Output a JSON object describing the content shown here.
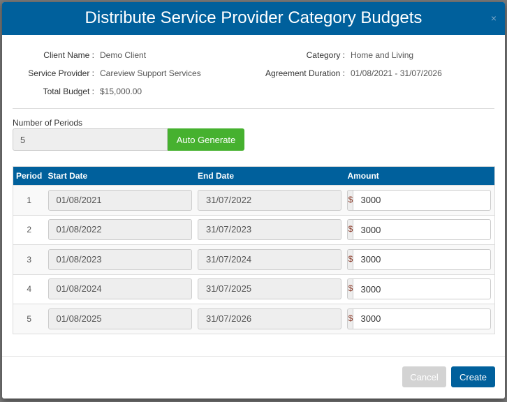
{
  "title": "Distribute Service Provider Category Budgets",
  "close": "×",
  "info": {
    "client_name_label": "Client Name :",
    "client_name": "Demo Client",
    "provider_label": "Service Provider :",
    "provider": "Careview Support Services",
    "budget_label": "Total Budget :",
    "budget": "$15,000.00",
    "category_label": "Category :",
    "category": "Home and Living",
    "duration_label": "Agreement Duration :",
    "duration": "01/08/2021 - 31/07/2026"
  },
  "periods": {
    "label": "Number of Periods",
    "value": "5",
    "button": "Auto Generate"
  },
  "table": {
    "headers": [
      "Period",
      "Start Date",
      "End Date",
      "Amount"
    ],
    "currency": "$",
    "rows": [
      {
        "period": "1",
        "start": "01/08/2021",
        "end": "31/07/2022",
        "amount": "3000"
      },
      {
        "period": "2",
        "start": "01/08/2022",
        "end": "31/07/2023",
        "amount": "3000"
      },
      {
        "period": "3",
        "start": "01/08/2023",
        "end": "31/07/2024",
        "amount": "3000"
      },
      {
        "period": "4",
        "start": "01/08/2024",
        "end": "31/07/2025",
        "amount": "3000"
      },
      {
        "period": "5",
        "start": "01/08/2025",
        "end": "31/07/2026",
        "amount": "3000"
      }
    ]
  },
  "footer": {
    "cancel": "Cancel",
    "create": "Create"
  }
}
